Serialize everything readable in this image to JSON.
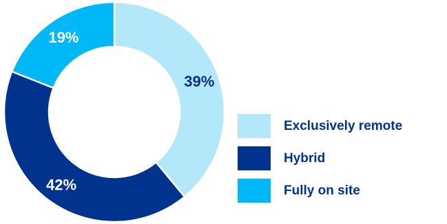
{
  "chart_data": {
    "type": "pie",
    "variant": "donut",
    "slices": [
      {
        "label": "Exclusively remote",
        "value": 39,
        "display": "39%",
        "color": "#b3e8fb",
        "label_color": "#0a2f8a"
      },
      {
        "label": "Hybrid",
        "value": 42,
        "display": "42%",
        "color": "#00338d",
        "label_color": "#ffffff"
      },
      {
        "label": "Fully on site",
        "value": 19,
        "display": "19%",
        "color": "#00b8f5",
        "label_color": "#ffffff"
      }
    ],
    "legend": {
      "placement": "right",
      "text_color": "#00338d",
      "items": [
        {
          "label": "Exclusively remote",
          "color": "#b3e8fb"
        },
        {
          "label": "Hybrid",
          "color": "#00338d"
        },
        {
          "label": "Fully on site",
          "color": "#00b8f5"
        }
      ]
    }
  }
}
